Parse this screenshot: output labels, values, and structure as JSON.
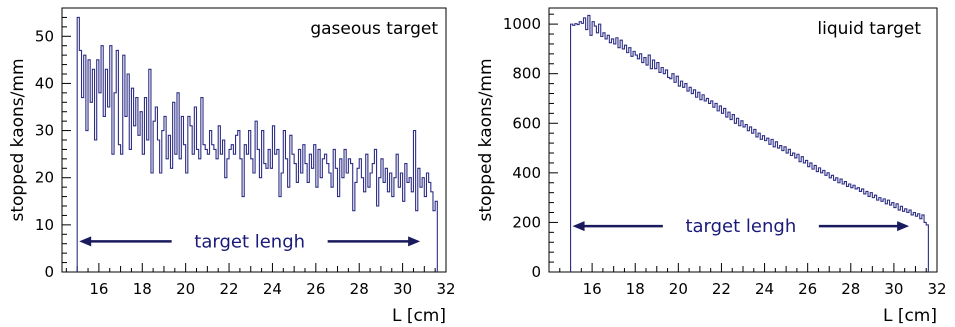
{
  "chart_data": [
    {
      "type": "line",
      "step": true,
      "annotation": "gaseous target",
      "xlabel": "L [cm]",
      "ylabel": "stopped kaons/mm",
      "xlim": [
        14.3,
        32
      ],
      "ylim": [
        0,
        56
      ],
      "xticks": [
        16,
        18,
        20,
        22,
        24,
        26,
        28,
        30,
        32
      ],
      "yticks": [
        0,
        10,
        20,
        30,
        40,
        50
      ],
      "x_start": 15.0,
      "bin_width": 0.1,
      "color": "#2e2e86",
      "values": [
        54,
        47,
        37,
        46,
        30,
        45,
        36,
        43,
        28,
        45,
        38,
        48,
        33,
        43,
        35,
        48,
        25,
        38,
        47,
        27,
        25,
        46,
        33,
        42,
        26,
        39,
        31,
        37,
        29,
        34,
        25,
        37,
        28,
        43,
        21,
        32,
        35,
        28,
        21,
        30,
        33,
        24,
        29,
        22,
        36,
        25,
        38,
        24,
        33,
        27,
        21,
        33,
        31,
        25,
        35,
        26,
        24,
        37,
        27,
        26,
        25,
        30,
        27,
        26,
        24,
        31,
        25,
        28,
        20,
        24,
        26,
        27,
        25,
        29,
        30,
        24,
        16,
        27,
        25,
        30,
        24,
        21,
        32,
        26,
        20,
        30,
        23,
        22,
        26,
        22,
        31,
        25,
        26,
        16,
        21,
        30,
        24,
        18,
        29,
        25,
        23,
        19,
        26,
        21,
        27,
        23,
        19,
        25,
        22,
        27,
        18,
        26,
        20,
        24,
        25,
        23,
        21,
        18,
        26,
        22,
        16,
        24,
        20,
        26,
        21,
        24,
        23,
        13,
        19,
        22,
        24,
        20,
        17,
        25,
        18,
        21,
        23,
        26,
        14,
        20,
        24,
        19,
        22,
        17,
        21,
        16,
        20,
        25,
        18,
        21,
        15,
        23,
        19,
        20,
        17,
        30,
        13,
        22,
        18,
        20,
        16,
        21,
        19,
        17,
        13,
        15
      ],
      "range_annotation": {
        "label": "target lengh",
        "from": 15.0,
        "to": 30.9,
        "y": 6.5
      }
    },
    {
      "type": "line",
      "step": true,
      "annotation": "liquid target",
      "xlabel": "L [cm]",
      "ylabel": "stopped kaons/mm",
      "xlim": [
        14.0,
        32
      ],
      "ylim": [
        0,
        1065
      ],
      "xticks": [
        16,
        18,
        20,
        22,
        24,
        26,
        28,
        30,
        32
      ],
      "yticks": [
        0,
        200,
        400,
        600,
        800,
        1000
      ],
      "x_start": 15.0,
      "bin_width": 0.1,
      "color": "#2e2e86",
      "values": [
        1000,
        995,
        1002,
        998,
        1010,
        1003,
        1025,
        978,
        1035,
        955,
        1010,
        992,
        965,
        1000,
        950,
        965,
        940,
        955,
        925,
        940,
        920,
        945,
        905,
        935,
        900,
        915,
        885,
        905,
        870,
        890,
        875,
        860,
        880,
        845,
        865,
        835,
        875,
        820,
        855,
        820,
        845,
        805,
        825,
        800,
        815,
        785,
        780,
        800,
        765,
        790,
        750,
        770,
        745,
        760,
        730,
        745,
        720,
        735,
        705,
        725,
        695,
        715,
        690,
        700,
        680,
        690,
        665,
        680,
        650,
        670,
        640,
        660,
        625,
        645,
        615,
        635,
        600,
        620,
        590,
        610,
        585,
        595,
        570,
        585,
        560,
        575,
        545,
        560,
        535,
        550,
        530,
        540,
        515,
        535,
        505,
        525,
        500,
        510,
        490,
        505,
        480,
        495,
        470,
        480,
        460,
        475,
        445,
        465,
        440,
        450,
        425,
        440,
        415,
        430,
        405,
        420,
        400,
        410,
        390,
        400,
        380,
        390,
        370,
        380,
        360,
        375,
        355,
        365,
        345,
        355,
        340,
        350,
        335,
        340,
        325,
        335,
        315,
        325,
        305,
        320,
        300,
        310,
        290,
        300,
        285,
        295,
        275,
        290,
        270,
        280,
        260,
        275,
        250,
        265,
        245,
        255,
        240,
        250,
        230,
        240,
        225,
        235,
        215,
        230,
        200,
        190
      ],
      "range_annotation": {
        "label": "target lengh",
        "from": 15.0,
        "to": 30.8,
        "y": 185
      }
    }
  ]
}
